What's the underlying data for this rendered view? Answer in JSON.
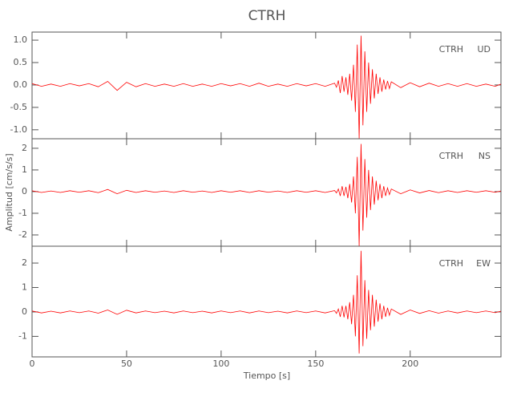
{
  "chart_data": [
    {
      "type": "line",
      "title": "CTRH",
      "station": "CTRH",
      "component": "UD",
      "color": "#ff0000",
      "x": [
        0,
        5,
        10,
        15,
        20,
        25,
        30,
        35,
        40,
        45,
        50,
        55,
        60,
        65,
        70,
        75,
        80,
        85,
        90,
        95,
        100,
        105,
        110,
        115,
        120,
        125,
        130,
        135,
        140,
        145,
        150,
        155,
        160,
        161,
        162,
        163,
        164,
        165,
        166,
        167,
        168,
        169,
        170,
        171,
        172,
        173,
        174,
        175,
        176,
        177,
        178,
        179,
        180,
        181,
        182,
        183,
        184,
        185,
        186,
        187,
        188,
        189,
        190,
        195,
        200,
        205,
        210,
        215,
        220,
        225,
        230,
        235,
        240,
        245,
        248
      ],
      "values": [
        0.03,
        -0.03,
        0.02,
        -0.03,
        0.03,
        -0.02,
        0.03,
        -0.04,
        0.08,
        -0.12,
        0.06,
        -0.04,
        0.03,
        -0.03,
        0.02,
        -0.03,
        0.03,
        -0.03,
        0.02,
        -0.03,
        0.03,
        -0.02,
        0.03,
        -0.03,
        0.04,
        -0.03,
        0.02,
        -0.03,
        0.03,
        -0.02,
        0.03,
        -0.03,
        0.04,
        -0.05,
        0.1,
        -0.18,
        0.2,
        -0.15,
        0.17,
        -0.22,
        0.25,
        -0.35,
        0.45,
        -0.6,
        0.9,
        -1.2,
        1.1,
        -0.9,
        0.75,
        -0.6,
        0.5,
        -0.42,
        0.35,
        -0.3,
        0.25,
        -0.2,
        0.17,
        -0.15,
        0.12,
        -0.1,
        0.09,
        -0.08,
        0.07,
        -0.06,
        0.05,
        -0.04,
        0.04,
        -0.03,
        0.03,
        -0.03,
        0.03,
        -0.03,
        0.02,
        -0.03,
        0.02
      ],
      "xlim": [
        0,
        248
      ],
      "xticks": [
        0,
        50,
        100,
        150,
        200
      ],
      "ylim": [
        -1.2,
        1.18
      ],
      "yticks": [
        {
          "value": -1,
          "label": "-1.0"
        },
        -0.5,
        {
          "value": 0,
          "label": "0.0"
        },
        0.5,
        {
          "value": 1,
          "label": "1.0"
        }
      ]
    },
    {
      "type": "line",
      "ylabel": "Amplitud [cm/s/s]",
      "station": "CTRH",
      "component": "NS",
      "color": "#ff0000",
      "x": [
        0,
        5,
        10,
        15,
        20,
        25,
        30,
        35,
        40,
        45,
        50,
        55,
        60,
        65,
        70,
        75,
        80,
        85,
        90,
        95,
        100,
        105,
        110,
        115,
        120,
        125,
        130,
        135,
        140,
        145,
        150,
        155,
        160,
        161,
        162,
        163,
        164,
        165,
        166,
        167,
        168,
        169,
        170,
        171,
        172,
        173,
        174,
        175,
        176,
        177,
        178,
        179,
        180,
        181,
        182,
        183,
        184,
        185,
        186,
        187,
        188,
        189,
        190,
        195,
        200,
        205,
        210,
        215,
        220,
        225,
        230,
        235,
        240,
        245,
        248
      ],
      "values": [
        0.04,
        -0.04,
        0.03,
        -0.04,
        0.04,
        -0.03,
        0.04,
        -0.05,
        0.1,
        -0.1,
        0.06,
        -0.04,
        0.04,
        -0.03,
        0.03,
        -0.04,
        0.04,
        -0.03,
        0.03,
        -0.04,
        0.04,
        -0.03,
        0.04,
        -0.04,
        0.04,
        -0.03,
        0.03,
        -0.04,
        0.04,
        -0.03,
        0.04,
        -0.04,
        0.05,
        -0.06,
        0.12,
        -0.2,
        0.25,
        -0.2,
        0.22,
        -0.3,
        0.35,
        -0.5,
        0.7,
        -1.0,
        1.6,
        -2.5,
        2.2,
        -1.8,
        1.5,
        -1.2,
        1.0,
        -0.85,
        0.7,
        -0.6,
        0.5,
        -0.4,
        0.35,
        -0.3,
        0.25,
        -0.2,
        0.17,
        -0.14,
        0.12,
        -0.1,
        0.08,
        -0.06,
        0.05,
        -0.05,
        0.04,
        -0.04,
        0.04,
        -0.03,
        0.04,
        -0.03,
        0.03
      ],
      "xlim": [
        0,
        248
      ],
      "xticks": [
        0,
        50,
        100,
        150,
        200
      ],
      "ylim": [
        -2.52,
        2.44
      ],
      "yticks": [
        -2,
        -1,
        0,
        1,
        2
      ]
    },
    {
      "type": "line",
      "xlabel": "Tiempo [s]",
      "station": "CTRH",
      "component": "EW",
      "color": "#ff0000",
      "x": [
        0,
        5,
        10,
        15,
        20,
        25,
        30,
        35,
        40,
        45,
        50,
        55,
        60,
        65,
        70,
        75,
        80,
        85,
        90,
        95,
        100,
        105,
        110,
        115,
        120,
        125,
        130,
        135,
        140,
        145,
        150,
        155,
        160,
        161,
        162,
        163,
        164,
        165,
        166,
        167,
        168,
        169,
        170,
        171,
        172,
        173,
        174,
        175,
        176,
        177,
        178,
        179,
        180,
        181,
        182,
        183,
        184,
        185,
        186,
        187,
        188,
        189,
        190,
        195,
        200,
        205,
        210,
        215,
        220,
        225,
        230,
        235,
        240,
        245,
        248
      ],
      "values": [
        0.04,
        -0.04,
        0.03,
        -0.04,
        0.04,
        -0.03,
        0.04,
        -0.05,
        0.08,
        -0.1,
        0.07,
        -0.04,
        0.04,
        -0.03,
        0.03,
        -0.04,
        0.04,
        -0.03,
        0.03,
        -0.04,
        0.04,
        -0.03,
        0.04,
        -0.04,
        0.04,
        -0.03,
        0.03,
        -0.04,
        0.04,
        -0.03,
        0.04,
        -0.04,
        0.05,
        -0.06,
        0.12,
        -0.2,
        0.25,
        -0.22,
        0.25,
        -0.3,
        0.4,
        -0.5,
        0.7,
        -1.0,
        1.5,
        -1.7,
        2.5,
        -1.4,
        1.3,
        -1.1,
        0.9,
        -0.75,
        0.7,
        -0.6,
        0.5,
        -0.4,
        0.35,
        -0.3,
        0.25,
        -0.2,
        0.17,
        -0.14,
        0.12,
        -0.1,
        0.08,
        -0.06,
        0.05,
        -0.05,
        0.04,
        -0.04,
        0.04,
        -0.03,
        0.04,
        -0.03,
        0.03
      ],
      "xlim": [
        0,
        248
      ],
      "xticks": [
        0,
        50,
        100,
        150,
        200
      ],
      "ylim": [
        -1.84,
        2.69
      ],
      "yticks": [
        -1,
        0,
        1,
        2
      ]
    }
  ]
}
